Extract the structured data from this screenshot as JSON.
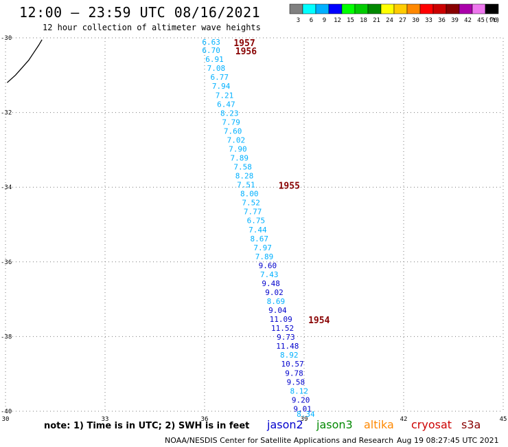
{
  "header": {
    "title": "12:00 – 23:59 UTC 08/16/2021",
    "subtitle": "12 hour collection of altimeter wave heights"
  },
  "legend": {
    "bins": [
      {
        "label": "3",
        "color": "#808080"
      },
      {
        "label": "6",
        "color": "#00ffff"
      },
      {
        "label": "9",
        "color": "#00b0ff"
      },
      {
        "label": "12",
        "color": "#0000ff"
      },
      {
        "label": "15",
        "color": "#00ff00"
      },
      {
        "label": "18",
        "color": "#00cc00"
      },
      {
        "label": "21",
        "color": "#008800"
      },
      {
        "label": "24",
        "color": "#ffff00"
      },
      {
        "label": "27",
        "color": "#ffcc00"
      },
      {
        "label": "30",
        "color": "#ff8800"
      },
      {
        "label": "33",
        "color": "#ff0000"
      },
      {
        "label": "36",
        "color": "#cc0000"
      },
      {
        "label": "39",
        "color": "#880000"
      },
      {
        "label": "42",
        "color": "#aa00aa"
      },
      {
        "label": "45",
        "color": "#ee77ee"
      },
      {
        "label": "70",
        "color": "#000000"
      }
    ],
    "unit": "(ft)"
  },
  "footer": {
    "note": "note:  1) Time is in UTC;  2) SWH is in feet",
    "satellites": [
      {
        "name": "jason2",
        "color": "#0000cc"
      },
      {
        "name": "jason3",
        "color": "#008800"
      },
      {
        "name": "altika",
        "color": "#ff8800"
      },
      {
        "name": "cryosat",
        "color": "#cc0000"
      },
      {
        "name": "s3a",
        "color": "#880000"
      }
    ],
    "credit": "NOAA/NESDIS Center for Satellite Applications and Research",
    "timestamp": "Aug 19 08:27:45 UTC 2021"
  },
  "chart_data": {
    "type": "scatter",
    "title": "",
    "xlabel": "",
    "ylabel": "",
    "xlim": [
      30,
      45
    ],
    "ylim": [
      -40,
      -30
    ],
    "xticks": [
      "30",
      "33",
      "36",
      "39",
      "42",
      "45"
    ],
    "yticks": [
      "-30",
      "-32",
      "-34",
      "-36",
      "-38",
      "-40"
    ],
    "grid": true,
    "points": [
      {
        "x": 36.2,
        "y": -30.04,
        "label": "6.63",
        "color": "#00b0ff"
      },
      {
        "x": 36.2,
        "y": -30.26,
        "label": "6.70",
        "color": "#00b0ff"
      },
      {
        "x": 36.3,
        "y": -30.5,
        "label": "6.91",
        "color": "#00b0ff"
      },
      {
        "x": 36.35,
        "y": -30.74,
        "label": "7.08",
        "color": "#00b0ff"
      },
      {
        "x": 36.45,
        "y": -30.98,
        "label": "6.77",
        "color": "#00b0ff"
      },
      {
        "x": 36.5,
        "y": -31.22,
        "label": "7.94",
        "color": "#00b0ff"
      },
      {
        "x": 36.6,
        "y": -31.46,
        "label": "7.21",
        "color": "#00b0ff"
      },
      {
        "x": 36.65,
        "y": -31.7,
        "label": "6.47",
        "color": "#00b0ff"
      },
      {
        "x": 36.75,
        "y": -31.94,
        "label": "8.23",
        "color": "#00b0ff"
      },
      {
        "x": 36.8,
        "y": -32.18,
        "label": "7.79",
        "color": "#00b0ff"
      },
      {
        "x": 36.85,
        "y": -32.42,
        "label": "7.60",
        "color": "#00b0ff"
      },
      {
        "x": 36.95,
        "y": -32.66,
        "label": "7.02",
        "color": "#00b0ff"
      },
      {
        "x": 37.0,
        "y": -32.9,
        "label": "7.90",
        "color": "#00b0ff"
      },
      {
        "x": 37.05,
        "y": -33.14,
        "label": "7.89",
        "color": "#00b0ff"
      },
      {
        "x": 37.15,
        "y": -33.38,
        "label": "7.58",
        "color": "#00b0ff"
      },
      {
        "x": 37.2,
        "y": -33.62,
        "label": "8.28",
        "color": "#00b0ff"
      },
      {
        "x": 37.25,
        "y": -33.86,
        "label": "7.51",
        "color": "#00b0ff"
      },
      {
        "x": 37.35,
        "y": -34.1,
        "label": "8.00",
        "color": "#00b0ff"
      },
      {
        "x": 37.4,
        "y": -34.34,
        "label": "7.52",
        "color": "#00b0ff"
      },
      {
        "x": 37.45,
        "y": -34.58,
        "label": "7.77",
        "color": "#00b0ff"
      },
      {
        "x": 37.55,
        "y": -34.82,
        "label": "6.75",
        "color": "#00b0ff"
      },
      {
        "x": 37.6,
        "y": -35.06,
        "label": "7.44",
        "color": "#00b0ff"
      },
      {
        "x": 37.65,
        "y": -35.3,
        "label": "8.67",
        "color": "#00b0ff"
      },
      {
        "x": 37.75,
        "y": -35.54,
        "label": "7.97",
        "color": "#00b0ff"
      },
      {
        "x": 37.8,
        "y": -35.78,
        "label": "7.89",
        "color": "#00b0ff"
      },
      {
        "x": 37.9,
        "y": -36.02,
        "label": "9.60",
        "color": "#0000cc"
      },
      {
        "x": 37.95,
        "y": -36.26,
        "label": "7.43",
        "color": "#00b0ff"
      },
      {
        "x": 38.0,
        "y": -36.5,
        "label": "9.48",
        "color": "#0000cc"
      },
      {
        "x": 38.1,
        "y": -36.74,
        "label": "9.02",
        "color": "#0000cc"
      },
      {
        "x": 38.15,
        "y": -36.98,
        "label": "8.69",
        "color": "#00b0ff"
      },
      {
        "x": 38.2,
        "y": -37.22,
        "label": "9.04",
        "color": "#0000cc"
      },
      {
        "x": 38.3,
        "y": -37.46,
        "label": "11.09",
        "color": "#0000cc"
      },
      {
        "x": 38.35,
        "y": -37.7,
        "label": "11.52",
        "color": "#0000cc"
      },
      {
        "x": 38.45,
        "y": -37.94,
        "label": "9.73",
        "color": "#0000cc"
      },
      {
        "x": 38.5,
        "y": -38.18,
        "label": "11.48",
        "color": "#0000cc"
      },
      {
        "x": 38.55,
        "y": -38.42,
        "label": "8.92",
        "color": "#00b0ff"
      },
      {
        "x": 38.65,
        "y": -38.66,
        "label": "10.57",
        "color": "#0000cc"
      },
      {
        "x": 38.7,
        "y": -38.9,
        "label": "9.78",
        "color": "#0000cc"
      },
      {
        "x": 38.75,
        "y": -39.14,
        "label": "9.58",
        "color": "#0000cc"
      },
      {
        "x": 38.85,
        "y": -39.38,
        "label": "8.12",
        "color": "#00b0ff"
      },
      {
        "x": 38.9,
        "y": -39.62,
        "label": "9.20",
        "color": "#0000cc"
      },
      {
        "x": 38.95,
        "y": -39.86,
        "label": "9.01",
        "color": "#0000cc"
      },
      {
        "x": 39.05,
        "y": -40.0,
        "label": "8.34",
        "color": "#00b0ff"
      }
    ],
    "time_labels": [
      {
        "x": 37.2,
        "y": -30.04,
        "label": "1957"
      },
      {
        "x": 37.25,
        "y": -30.26,
        "label": "1956"
      },
      {
        "x": 38.55,
        "y": -33.86,
        "label": "1955"
      },
      {
        "x": 39.45,
        "y": -37.46,
        "label": "1954"
      }
    ],
    "coastline": [
      [
        30.05,
        -31.2
      ],
      [
        30.3,
        -31.0
      ],
      [
        30.5,
        -30.8
      ],
      [
        30.7,
        -30.6
      ],
      [
        30.85,
        -30.4
      ],
      [
        31.0,
        -30.2
      ],
      [
        31.1,
        -30.05
      ]
    ]
  }
}
